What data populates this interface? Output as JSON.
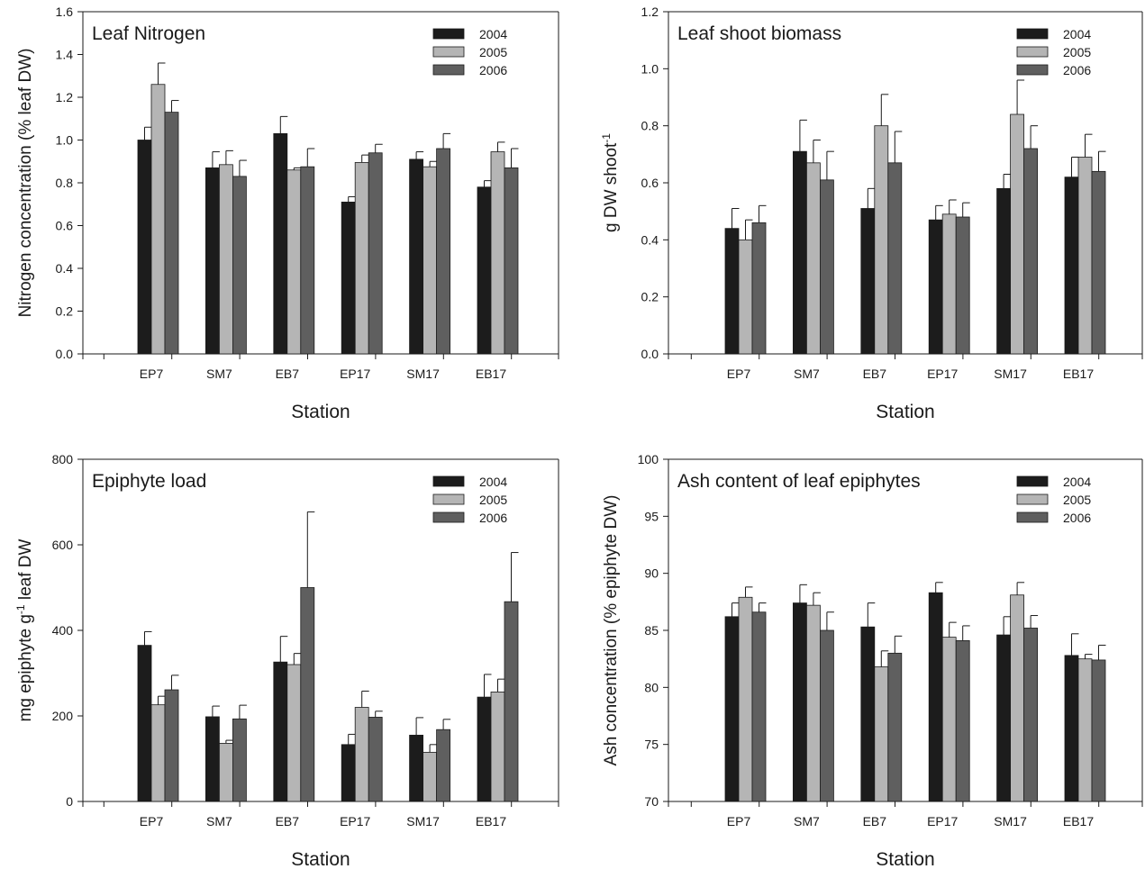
{
  "colors": {
    "2004": "#1c1c1c",
    "2005": "#b5b5b5",
    "2006": "#5f5f5f"
  },
  "chart_data": [
    {
      "type": "bar",
      "title": "Leaf Nitrogen",
      "xlabel": "Station",
      "ylabel": "Nitrogen concentration (% leaf DW)",
      "ylabel_sup": "",
      "ylabel_tail": "",
      "categories": [
        "EP7",
        "SM7",
        "EB7",
        "EP17",
        "SM17",
        "EB17"
      ],
      "ylim": [
        0,
        1.6
      ],
      "yticks": [
        "0.0",
        "0.2",
        "0.4",
        "0.6",
        "0.8",
        "1.0",
        "1.2",
        "1.4",
        "1.6"
      ],
      "legend_position": "top-right",
      "series": [
        {
          "name": "2004",
          "values": [
            1.0,
            0.87,
            1.03,
            0.71,
            0.91,
            0.78
          ],
          "errors": [
            0.06,
            0.075,
            0.08,
            0.025,
            0.035,
            0.03
          ]
        },
        {
          "name": "2005",
          "values": [
            1.26,
            0.885,
            0.86,
            0.895,
            0.875,
            0.945
          ],
          "errors": [
            0.1,
            0.065,
            0.01,
            0.035,
            0.025,
            0.045
          ]
        },
        {
          "name": "2006",
          "values": [
            1.13,
            0.83,
            0.875,
            0.94,
            0.96,
            0.87
          ],
          "errors": [
            0.055,
            0.075,
            0.085,
            0.04,
            0.07,
            0.09
          ]
        }
      ]
    },
    {
      "type": "bar",
      "title": "Leaf shoot biomass",
      "xlabel": "Station",
      "ylabel": "g DW shoot",
      "ylabel_sup": "-1",
      "ylabel_tail": "",
      "categories": [
        "EP7",
        "SM7",
        "EB7",
        "EP17",
        "SM17",
        "EB17"
      ],
      "ylim": [
        0,
        1.2
      ],
      "yticks": [
        "0.0",
        "0.2",
        "0.4",
        "0.6",
        "0.8",
        "1.0",
        "1.2"
      ],
      "legend_position": "top-right",
      "series": [
        {
          "name": "2004",
          "values": [
            0.44,
            0.71,
            0.51,
            0.47,
            0.58,
            0.62
          ],
          "errors": [
            0.07,
            0.11,
            0.07,
            0.05,
            0.05,
            0.07
          ]
        },
        {
          "name": "2005",
          "values": [
            0.4,
            0.67,
            0.8,
            0.49,
            0.84,
            0.69
          ],
          "errors": [
            0.07,
            0.08,
            0.11,
            0.05,
            0.12,
            0.08
          ]
        },
        {
          "name": "2006",
          "values": [
            0.46,
            0.61,
            0.67,
            0.48,
            0.72,
            0.64
          ],
          "errors": [
            0.06,
            0.1,
            0.11,
            0.05,
            0.08,
            0.07
          ]
        }
      ]
    },
    {
      "type": "bar",
      "title": "Epiphyte load",
      "xlabel": "Station",
      "ylabel": "mg epiphyte g",
      "ylabel_sup": "-1",
      "ylabel_tail": " leaf DW",
      "categories": [
        "EP7",
        "SM7",
        "EB7",
        "EP17",
        "SM17",
        "EB17"
      ],
      "ylim": [
        0,
        800
      ],
      "yticks": [
        "0",
        "200",
        "400",
        "600",
        "800"
      ],
      "legend_position": "top-right",
      "series": [
        {
          "name": "2004",
          "values": [
            365,
            198,
            326,
            133,
            155,
            244
          ],
          "errors": [
            32,
            25,
            60,
            24,
            41,
            53
          ]
        },
        {
          "name": "2005",
          "values": [
            226,
            136,
            320,
            220,
            115,
            256
          ],
          "errors": [
            20,
            7,
            26,
            38,
            18,
            30
          ]
        },
        {
          "name": "2006",
          "values": [
            261,
            193,
            500,
            197,
            168,
            467
          ],
          "errors": [
            34,
            32,
            177,
            14,
            24,
            115
          ]
        }
      ]
    },
    {
      "type": "bar",
      "title": "Ash content of leaf epiphytes",
      "xlabel": "Station",
      "ylabel": "Ash concentration (% epiphyte DW)",
      "ylabel_sup": "",
      "ylabel_tail": "",
      "categories": [
        "EP7",
        "SM7",
        "EB7",
        "EP17",
        "SM17",
        "EB17"
      ],
      "ylim": [
        70,
        100
      ],
      "yticks": [
        "70",
        "75",
        "80",
        "85",
        "90",
        "95",
        "100"
      ],
      "legend_position": "top-right",
      "series": [
        {
          "name": "2004",
          "values": [
            86.2,
            87.4,
            85.3,
            88.3,
            84.6,
            82.8
          ],
          "errors": [
            1.2,
            1.6,
            2.1,
            0.9,
            1.6,
            1.9
          ]
        },
        {
          "name": "2005",
          "values": [
            87.9,
            87.2,
            81.8,
            84.4,
            88.1,
            82.5
          ],
          "errors": [
            0.9,
            1.1,
            1.4,
            1.3,
            1.1,
            0.4
          ]
        },
        {
          "name": "2006",
          "values": [
            86.6,
            85.0,
            83.0,
            84.1,
            85.2,
            82.4
          ],
          "errors": [
            0.8,
            1.6,
            1.5,
            1.3,
            1.1,
            1.3
          ]
        }
      ]
    }
  ]
}
